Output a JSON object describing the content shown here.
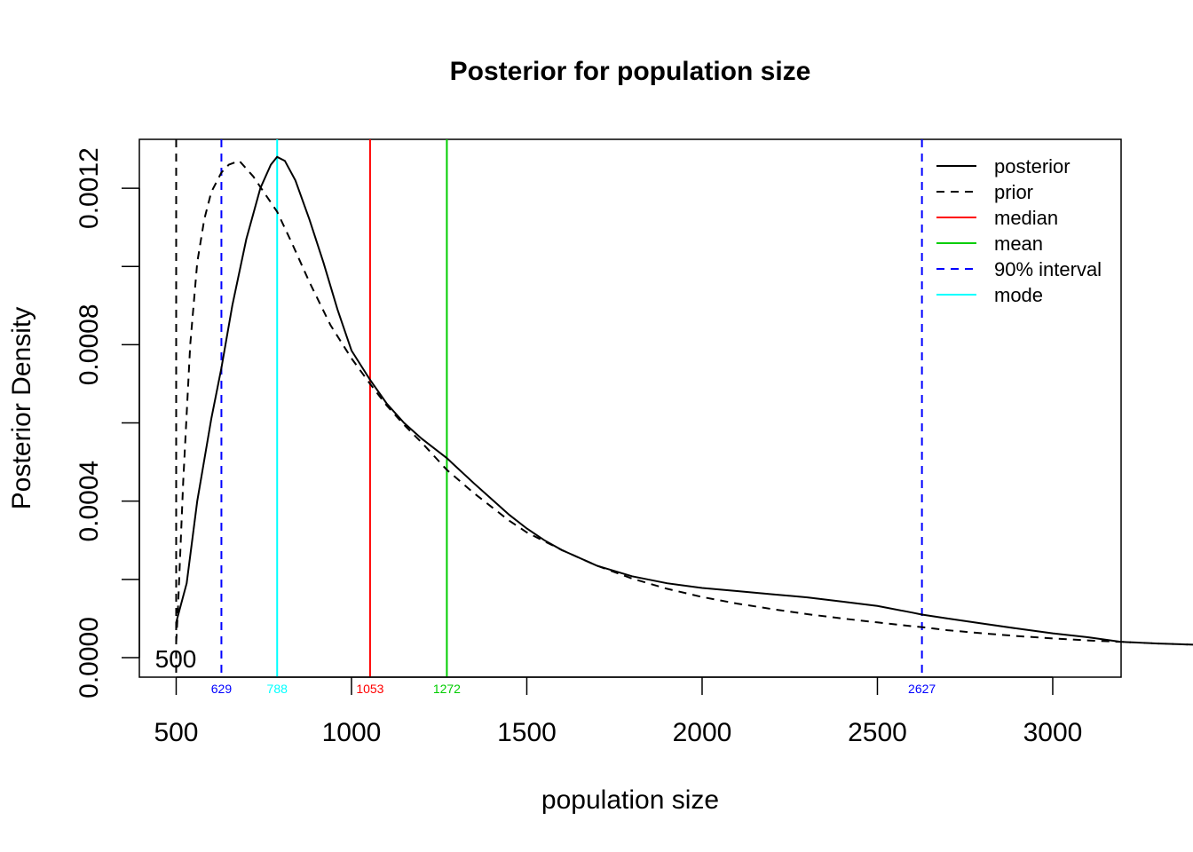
{
  "chart_data": {
    "type": "line",
    "title": "Posterior for population size",
    "xlabel": "population size",
    "ylabel": "Posterior Density",
    "xlim": [
      395,
      3195
    ],
    "ylim": [
      -5e-05,
      0.001325
    ],
    "x_ticks": [
      500,
      1000,
      1500,
      2000,
      2500,
      3000
    ],
    "y_ticks": [
      0,
      0.0002,
      0.0004,
      0.0006,
      0.0008,
      0.001,
      0.0012
    ],
    "y_tick_labels": [
      {
        "value": 0,
        "label": "0.0000"
      },
      {
        "value": 0.0004,
        "label": "0.0004"
      },
      {
        "value": 0.0008,
        "label": "0.0008"
      },
      {
        "value": 0.0012,
        "label": "0.0012"
      }
    ],
    "lower_bound_label": {
      "value": 500,
      "label": "500"
    },
    "series": [
      {
        "name": "posterior",
        "style": "solid",
        "color": "#000000",
        "x": [
          500,
          530,
          560,
          600,
          629,
          660,
          700,
          740,
          770,
          788,
          810,
          840,
          880,
          920,
          960,
          1000,
          1053,
          1100,
          1150,
          1200,
          1272,
          1350,
          1400,
          1450,
          1500,
          1550,
          1600,
          1700,
          1800,
          1900,
          2000,
          2100,
          2200,
          2300,
          2400,
          2500,
          2600,
          2627,
          2700,
          2800,
          2900,
          3000,
          3100,
          3195
        ],
        "y": [
          9e-05,
          0.00019,
          0.0004,
          0.00061,
          0.00074,
          0.0009,
          0.00107,
          0.0012,
          0.00126,
          0.00128,
          0.00127,
          0.00122,
          0.00112,
          0.00101,
          0.00089,
          0.000785,
          0.00071,
          0.00065,
          0.0006,
          0.00056,
          0.00051,
          0.000445,
          0.000405,
          0.000365,
          0.00033,
          0.0003,
          0.000275,
          0.000235,
          0.000208,
          0.00019,
          0.000178,
          0.00017,
          0.000162,
          0.000154,
          0.000143,
          0.000132,
          0.000115,
          0.00011,
          0.0001,
          8.7e-05,
          7.4e-05,
          6.2e-05,
          5.2e-05,
          4e-05
        ]
      },
      {
        "name": "prior",
        "style": "dashed",
        "color": "#000000",
        "x": [
          500,
          505,
          520,
          540,
          560,
          580,
          600,
          629,
          650,
          680,
          700,
          720,
          750,
          788,
          830,
          880,
          940,
          1000,
          1053,
          1100,
          1150,
          1200,
          1272,
          1350,
          1400,
          1450,
          1500,
          1600,
          1700,
          1800,
          1900,
          2000,
          2100,
          2200,
          2300,
          2400,
          2500,
          2600,
          2627,
          2700,
          2800,
          2900,
          3000,
          3100,
          3200,
          3300,
          3400
        ],
        "y": [
          4e-05,
          0.00012,
          0.00045,
          0.0008,
          0.00101,
          0.00112,
          0.00119,
          0.00124,
          0.00126,
          0.00127,
          0.00125,
          0.00123,
          0.00119,
          0.00114,
          0.00106,
          0.00096,
          0.00085,
          0.000765,
          0.0007,
          0.000645,
          0.000595,
          0.00055,
          0.00048,
          0.00042,
          0.000385,
          0.00035,
          0.00032,
          0.000275,
          0.000235,
          0.000202,
          0.000176,
          0.000155,
          0.000138,
          0.000124,
          0.000111,
          0.0001,
          9e-05,
          8e-05,
          7.8e-05,
          7e-05,
          6.2e-05,
          5.5e-05,
          4.9e-05,
          4.4e-05,
          4e-05,
          3.6e-05,
          3.3e-05
        ]
      }
    ],
    "vlines": [
      {
        "name": "lower-bound",
        "value": 500,
        "label": "",
        "color": "#000000",
        "style": "dashed"
      },
      {
        "name": "interval-lower",
        "value": 629,
        "label": "629",
        "color": "#0000ff",
        "style": "dashed"
      },
      {
        "name": "mode",
        "value": 788,
        "label": "788",
        "color": "#00ffff",
        "style": "solid"
      },
      {
        "name": "median",
        "value": 1053,
        "label": "1053",
        "color": "#ff0000",
        "style": "solid"
      },
      {
        "name": "mean",
        "value": 1272,
        "label": "1272",
        "color": "#00cd00",
        "style": "solid"
      },
      {
        "name": "interval-upper",
        "value": 2627,
        "label": "2627",
        "color": "#0000ff",
        "style": "dashed"
      }
    ],
    "legend": {
      "position": "top-right",
      "entries": [
        {
          "label": "posterior",
          "color": "#000000",
          "style": "solid"
        },
        {
          "label": "prior",
          "color": "#000000",
          "style": "dashed"
        },
        {
          "label": "median",
          "color": "#ff0000",
          "style": "solid"
        },
        {
          "label": "mean",
          "color": "#00cd00",
          "style": "solid"
        },
        {
          "label": "90% interval",
          "color": "#0000ff",
          "style": "dashed"
        },
        {
          "label": "mode",
          "color": "#00ffff",
          "style": "solid"
        }
      ]
    },
    "grid": false
  }
}
